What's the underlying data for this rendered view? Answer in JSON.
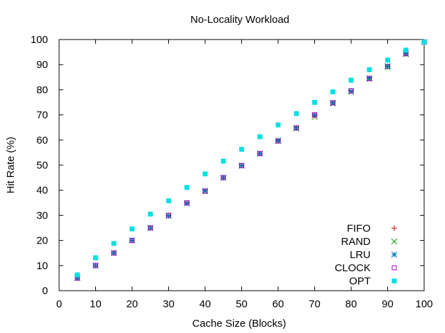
{
  "chart_data": {
    "type": "scatter",
    "title": "No-Locality Workload",
    "xlabel": "Cache Size (Blocks)",
    "ylabel": "Hit Rate (%)",
    "xlim": [
      0,
      100
    ],
    "ylim": [
      0,
      100
    ],
    "xticks": [
      "0",
      "10",
      "20",
      "30",
      "40",
      "50",
      "60",
      "70",
      "80",
      "90",
      "100"
    ],
    "yticks": [
      "0",
      "10",
      "20",
      "30",
      "40",
      "50",
      "60",
      "70",
      "80",
      "90",
      "100"
    ],
    "grid": false,
    "legend_position": "bottom-right",
    "x": [
      5,
      10,
      15,
      20,
      25,
      30,
      35,
      40,
      45,
      50,
      55,
      60,
      65,
      70,
      75,
      80,
      85,
      90,
      95,
      100
    ],
    "series": [
      {
        "name": "FIFO",
        "marker": "plus",
        "color": "#c00000",
        "values": [
          5.0,
          10.0,
          15.0,
          20.0,
          25.0,
          30.0,
          35.0,
          39.8,
          45.0,
          49.8,
          54.6,
          59.6,
          64.8,
          70.0,
          74.8,
          79.6,
          84.6,
          89.4,
          94.4,
          99.0
        ]
      },
      {
        "name": "RAND",
        "marker": "cross",
        "color": "#00a000",
        "values": [
          5.0,
          10.0,
          15.0,
          20.0,
          25.0,
          29.8,
          34.8,
          39.6,
          45.0,
          49.8,
          54.6,
          59.6,
          64.6,
          69.2,
          74.6,
          79.2,
          84.4,
          89.2,
          94.2,
          99.0
        ]
      },
      {
        "name": "LRU",
        "marker": "star",
        "color": "#0070b0",
        "values": [
          5.0,
          10.0,
          15.0,
          20.0,
          25.0,
          29.8,
          34.8,
          39.8,
          45.0,
          49.8,
          54.6,
          59.8,
          64.8,
          70.0,
          74.8,
          79.4,
          84.6,
          89.4,
          94.4,
          99.0
        ]
      },
      {
        "name": "CLOCK",
        "marker": "open-square",
        "color": "#a000c0",
        "values": [
          5.0,
          10.0,
          15.0,
          20.0,
          25.0,
          30.0,
          35.0,
          39.6,
          45.0,
          49.8,
          54.6,
          59.6,
          64.8,
          70.0,
          74.8,
          79.6,
          84.4,
          89.2,
          94.4,
          99.0
        ]
      },
      {
        "name": "OPT",
        "marker": "filled-square",
        "color": "#00e0e0",
        "values": [
          6.3,
          13.1,
          18.8,
          24.6,
          30.5,
          35.8,
          41.1,
          46.5,
          51.6,
          56.3,
          61.3,
          66.0,
          70.5,
          75.0,
          79.2,
          83.8,
          88.0,
          91.8,
          95.8,
          99.0
        ]
      }
    ]
  }
}
